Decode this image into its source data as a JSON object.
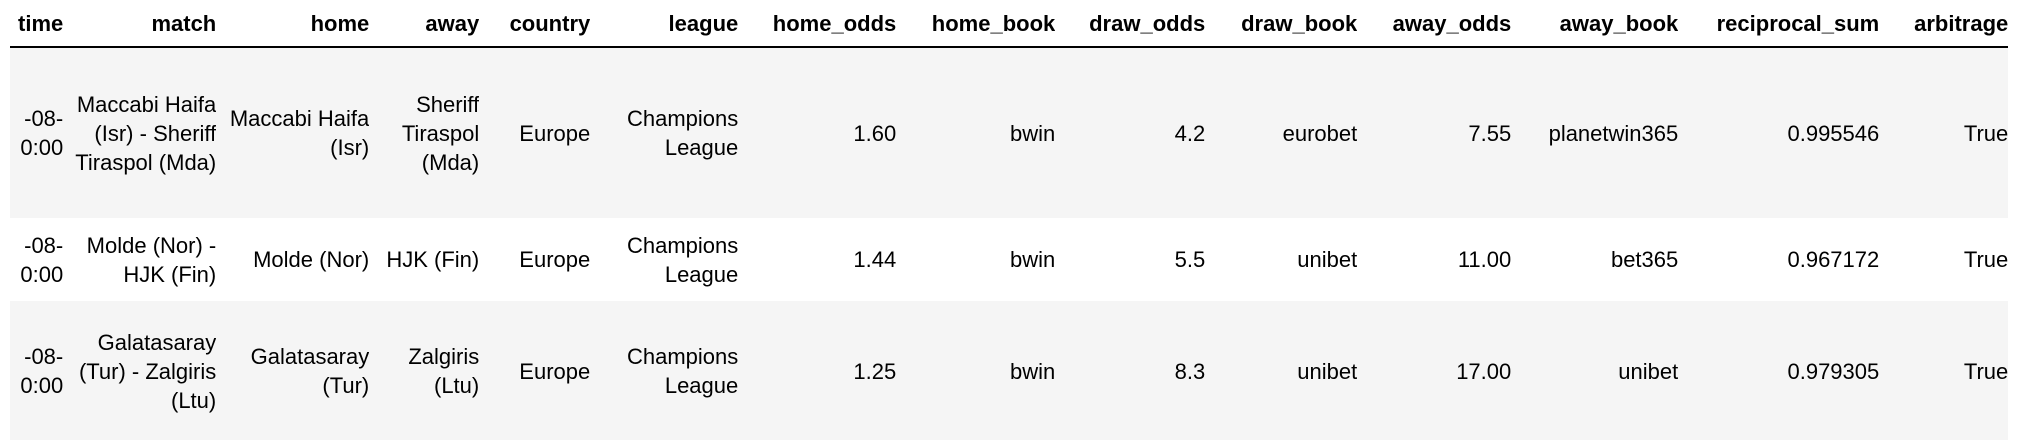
{
  "table": {
    "header": [
      "time",
      "match",
      "home",
      "away",
      "country",
      "league",
      "home_odds",
      "home_book",
      "draw_odds",
      "draw_book",
      "away_odds",
      "away_book",
      "reciprocal_sum",
      "arbitrage"
    ],
    "rows": [
      [
        "-08-\n0:00",
        "Maccabi Haifa (Isr) - Sheriff Tiraspol (Mda)",
        "Maccabi Haifa (Isr)",
        "Sheriff Tiraspol (Mda)",
        "Europe",
        "Champions League",
        "1.60",
        "bwin",
        "4.2",
        "eurobet",
        "7.55",
        "planetwin365",
        "0.995546",
        "True"
      ],
      [
        "-08-\n0:00",
        "Molde (Nor) - HJK (Fin)",
        "Molde (Nor)",
        "HJK (Fin)",
        "Europe",
        "Champions League",
        "1.44",
        "bwin",
        "5.5",
        "unibet",
        "11.00",
        "bet365",
        "0.967172",
        "True"
      ],
      [
        "-08-\n0:00",
        "Galatasaray (Tur) - Zalgiris (Ltu)",
        "Galatasaray (Tur)",
        "Zalgiris (Ltu)",
        "Europe",
        "Champions League",
        "1.25",
        "bwin",
        "8.3",
        "unibet",
        "17.00",
        "unibet",
        "0.979305",
        "True"
      ]
    ]
  }
}
